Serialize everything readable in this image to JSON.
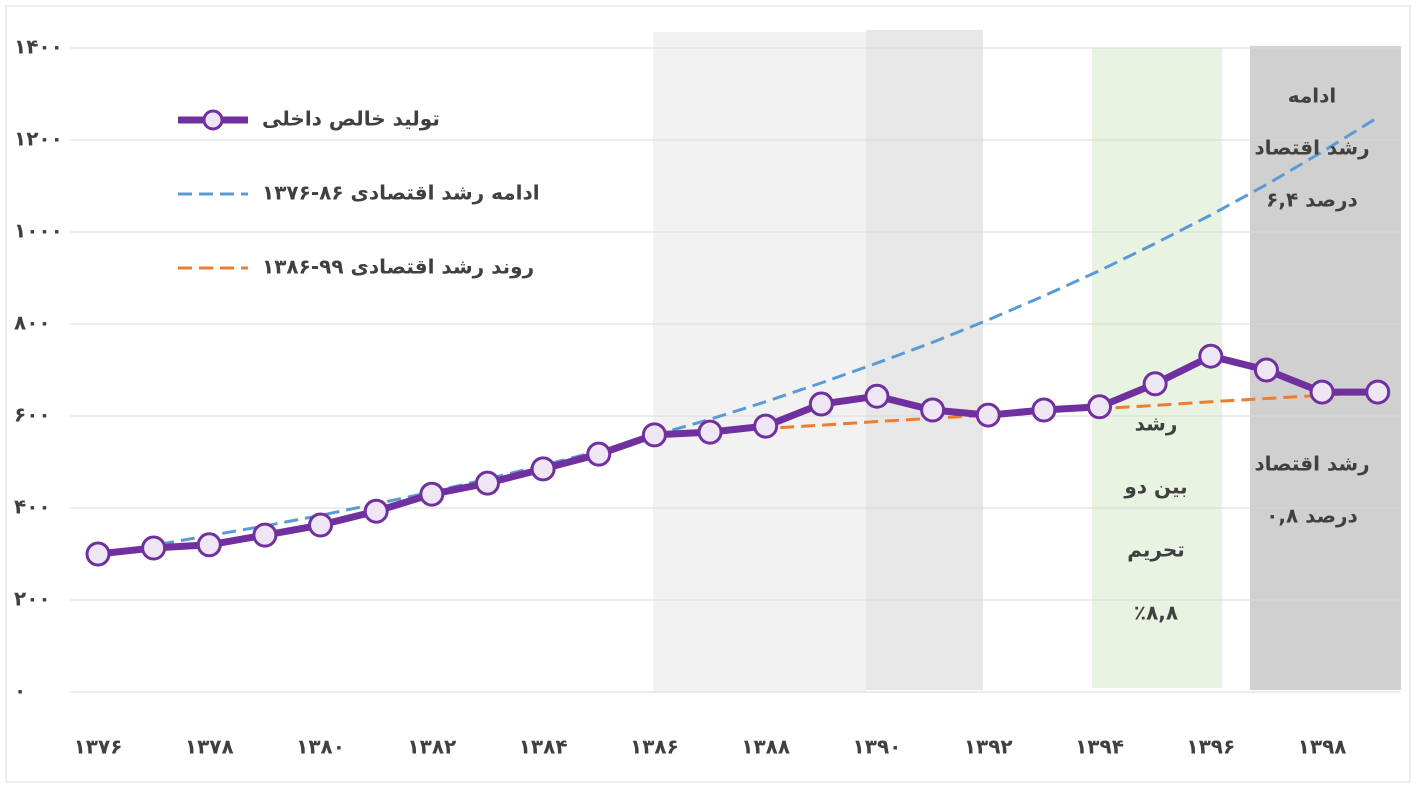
{
  "chart_data": {
    "type": "line",
    "categories": [
      "۱۳۷۶",
      null,
      "۱۳۷۸",
      null,
      "۱۳۸۰",
      null,
      "۱۳۸۲",
      null,
      "۱۳۸۴",
      null,
      "۱۳۸۶",
      null,
      "۱۳۸۸",
      null,
      "۱۳۹۰",
      null,
      "۱۳۹۲",
      null,
      "۱۳۹۴",
      null,
      "۱۳۹۶",
      null,
      "۱۳۹۸",
      null
    ],
    "series": [
      {
        "name": "تولید خالص داخلی",
        "color": "#7030a0",
        "values": [
          300,
          313,
          320,
          341,
          363,
          393,
          430,
          454,
          485,
          517,
          559,
          565,
          578,
          626,
          643,
          613,
          602,
          613,
          620,
          670,
          730,
          700,
          652,
          652
        ]
      },
      {
        "name": "ادامه رشد اقتصادی ۸۶-۱۳۷۶",
        "color": "#5b9bd5",
        "values": [
          300,
          319,
          340,
          361,
          384,
          409,
          435,
          463,
          493,
          524,
          558,
          593,
          631,
          672,
          715,
          760,
          809,
          861,
          916,
          975,
          1037,
          1103,
          1174,
          1249
        ]
      },
      {
        "name": "روند رشد اقتصادی ۹۹-۱۳۸۶",
        "color": "#ed7d31",
        "values": [
          null,
          null,
          null,
          null,
          null,
          null,
          null,
          null,
          null,
          null,
          559,
          566,
          573,
          580,
          588,
          595,
          602,
          609,
          616,
          623,
          631,
          638,
          645,
          652
        ]
      }
    ],
    "ylim": [
      0,
      1400
    ],
    "yticks": [
      {
        "value": 0,
        "label": "۰"
      },
      {
        "value": 200,
        "label": "۲۰۰"
      },
      {
        "value": 400,
        "label": "۴۰۰"
      },
      {
        "value": 600,
        "label": "۶۰۰"
      },
      {
        "value": 800,
        "label": "۸۰۰"
      },
      {
        "value": 1000,
        "label": "۱۰۰۰"
      },
      {
        "value": 1200,
        "label": "۱۲۰۰"
      },
      {
        "value": 1400,
        "label": "۱۴۰۰"
      }
    ],
    "grid": true,
    "annotations": {
      "top_right": [
        "ادامه",
        "رشد اقتصاد",
        "۶,۴ درصد"
      ],
      "bottom_right": [
        "رشد اقتصاد",
        "۰,۸ درصد"
      ],
      "sanctions": [
        "رشد",
        "بین دو",
        "تحریم",
        "٪۸,۸"
      ]
    }
  }
}
